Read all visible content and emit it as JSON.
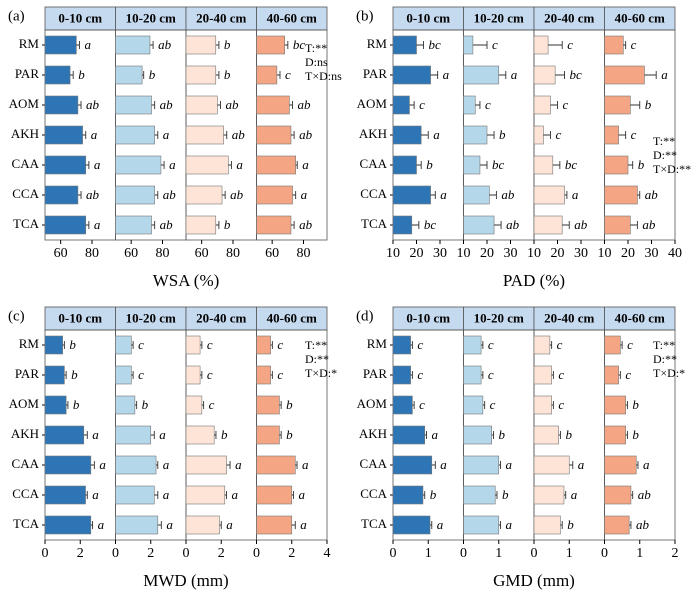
{
  "chart_data": [
    {
      "type": "bar",
      "orientation": "horizontal",
      "panel": "(a)",
      "xlabel": "WSA (%)",
      "categories": [
        "RM",
        "PAR",
        "AOM",
        "AKH",
        "CAA",
        "CCA",
        "TCA"
      ],
      "xlim": [
        50,
        95
      ],
      "xticks": [
        60,
        80
      ],
      "annotation": [
        "T:**",
        "D:ns",
        "T×D:ns"
      ],
      "series": [
        {
          "name": "0-10 cm",
          "color": "#2e75b6",
          "values": [
            70,
            66,
            71,
            74,
            76,
            71,
            76
          ],
          "errors": [
            2,
            2,
            2,
            2,
            2,
            2,
            2
          ],
          "letters": [
            "a",
            "b",
            "ab",
            "a",
            "a",
            "ab",
            "a"
          ]
        },
        {
          "name": "10-20 cm",
          "color": "#b4d7ea",
          "values": [
            72,
            67,
            73,
            75,
            79,
            75,
            73
          ],
          "errors": [
            2,
            1,
            2,
            2,
            2,
            2,
            2
          ],
          "letters": [
            "ab",
            "b",
            "ab",
            "a",
            "a",
            "ab",
            "ab"
          ]
        },
        {
          "name": "20-40 cm",
          "color": "#fde4d6",
          "values": [
            69,
            69,
            70,
            74,
            77,
            73,
            69
          ],
          "errors": [
            2,
            2,
            2,
            2,
            2,
            2,
            2
          ],
          "letters": [
            "b",
            "b",
            "ab",
            "ab",
            "a",
            "ab",
            "b"
          ]
        },
        {
          "name": "40-60 cm",
          "color": "#f4a583",
          "values": [
            68,
            63,
            71,
            72,
            75,
            73,
            72
          ],
          "errors": [
            2,
            2,
            2,
            2,
            1,
            2,
            2
          ],
          "letters": [
            "bc",
            "c",
            "ab",
            "ab",
            "a",
            "a",
            "ab"
          ]
        }
      ]
    },
    {
      "type": "bar",
      "orientation": "horizontal",
      "panel": "(b)",
      "xlabel": "PAD (%)",
      "categories": [
        "RM",
        "PAR",
        "AOM",
        "AKH",
        "CAA",
        "CCA",
        "TCA"
      ],
      "xlim": [
        10,
        40
      ],
      "xticks": [
        10,
        20,
        30,
        40
      ],
      "annotation": [
        "T:**",
        "D:**",
        "T×D:**"
      ],
      "series": [
        {
          "name": "0-10 cm",
          "color": "#2e75b6",
          "values": [
            20,
            26,
            17,
            22,
            20,
            26,
            18
          ],
          "errors": [
            3,
            3,
            2,
            3,
            2,
            2,
            3
          ],
          "letters": [
            "bc",
            "a",
            "c",
            "a",
            "b",
            "a",
            "bc"
          ]
        },
        {
          "name": "10-20 cm",
          "color": "#b4d7ea",
          "values": [
            14,
            25,
            15,
            20,
            17,
            21,
            23
          ],
          "errors": [
            6,
            3,
            2,
            3,
            3,
            3,
            3
          ],
          "letters": [
            "c",
            "a",
            "c",
            "b",
            "bc",
            "ab",
            "ab"
          ]
        },
        {
          "name": "20-40 cm",
          "color": "#fde4d6",
          "values": [
            16,
            19,
            17,
            14,
            18,
            23,
            22
          ],
          "errors": [
            6,
            4,
            3,
            3,
            3,
            1,
            3
          ],
          "letters": [
            "c",
            "bc",
            "c",
            "c",
            "bc",
            "a",
            "ab"
          ]
        },
        {
          "name": "40-60 cm",
          "color": "#f4a583",
          "values": [
            18,
            27,
            21,
            16,
            20,
            24,
            21
          ],
          "errors": [
            1,
            5,
            4,
            3,
            2,
            1,
            3
          ],
          "letters": [
            "c",
            "a",
            "b",
            "c",
            "b",
            "ab",
            "ab"
          ]
        }
      ]
    },
    {
      "type": "bar",
      "orientation": "horizontal",
      "panel": "(c)",
      "xlabel": "MWD (mm)",
      "categories": [
        "RM",
        "PAR",
        "AOM",
        "AKH",
        "CAA",
        "CCA",
        "TCA"
      ],
      "xlim": [
        0,
        4
      ],
      "xticks": [
        0,
        2,
        4
      ],
      "annotation": [
        "T:**",
        "D:**",
        "T×D:*"
      ],
      "series": [
        {
          "name": "0-10 cm",
          "color": "#2e75b6",
          "values": [
            1.0,
            1.1,
            1.2,
            2.2,
            2.6,
            2.3,
            2.6
          ],
          "errors": [
            0.1,
            0.1,
            0.1,
            0.2,
            0.2,
            0.1,
            0.1
          ],
          "letters": [
            "b",
            "b",
            "b",
            "a",
            "a",
            "a",
            "a"
          ]
        },
        {
          "name": "10-20 cm",
          "color": "#b4d7ea",
          "values": [
            0.9,
            0.9,
            1.1,
            2.0,
            2.3,
            2.2,
            2.4
          ],
          "errors": [
            0.1,
            0.1,
            0.1,
            0.2,
            0.1,
            0.2,
            0.2
          ],
          "letters": [
            "c",
            "c",
            "b",
            "a",
            "a",
            "a",
            "a"
          ]
        },
        {
          "name": "20-40 cm",
          "color": "#fde4d6",
          "values": [
            0.8,
            0.8,
            0.9,
            1.6,
            2.3,
            2.2,
            1.9
          ],
          "errors": [
            0.1,
            0.1,
            0.1,
            0.1,
            0.2,
            0.1,
            0.1
          ],
          "letters": [
            "c",
            "c",
            "c",
            "b",
            "a",
            "a",
            "a"
          ]
        },
        {
          "name": "40-60 cm",
          "color": "#f4a583",
          "values": [
            0.8,
            0.8,
            1.3,
            1.3,
            2.2,
            2.0,
            2.0
          ],
          "errors": [
            0.1,
            0.1,
            0.1,
            0.1,
            0.1,
            0.1,
            0.2
          ],
          "letters": [
            "c",
            "c",
            "b",
            "b",
            "a",
            "a",
            "a"
          ]
        }
      ]
    },
    {
      "type": "bar",
      "orientation": "horizontal",
      "panel": "(d)",
      "xlabel": "GMD (mm)",
      "categories": [
        "RM",
        "PAR",
        "AOM",
        "AKH",
        "CAA",
        "CCA",
        "TCA"
      ],
      "xlim": [
        0,
        2
      ],
      "xticks": [
        0,
        1,
        2
      ],
      "annotation": [
        "T:**",
        "D:**",
        "T×D:*"
      ],
      "series": [
        {
          "name": "0-10 cm",
          "color": "#2e75b6",
          "values": [
            0.5,
            0.5,
            0.55,
            0.9,
            1.1,
            0.85,
            1.05
          ],
          "errors": [
            0.05,
            0.05,
            0.05,
            0.05,
            0.1,
            0.05,
            0.05
          ],
          "letters": [
            "c",
            "c",
            "c",
            "a",
            "a",
            "b",
            "a"
          ]
        },
        {
          "name": "10-20 cm",
          "color": "#b4d7ea",
          "values": [
            0.5,
            0.5,
            0.55,
            0.8,
            1.0,
            0.9,
            1.0
          ],
          "errors": [
            0.05,
            0.05,
            0.05,
            0.05,
            0.05,
            0.05,
            0.05
          ],
          "letters": [
            "c",
            "c",
            "c",
            "b",
            "a",
            "b",
            "a"
          ]
        },
        {
          "name": "20-40 cm",
          "color": "#fde4d6",
          "values": [
            0.45,
            0.5,
            0.5,
            0.7,
            1.0,
            0.85,
            0.75
          ],
          "errors": [
            0.05,
            0.05,
            0.05,
            0.05,
            0.1,
            0.05,
            0.05
          ],
          "letters": [
            "c",
            "c",
            "c",
            "b",
            "a",
            "a",
            "b"
          ]
        },
        {
          "name": "40-60 cm",
          "color": "#f4a583",
          "values": [
            0.45,
            0.4,
            0.6,
            0.6,
            0.9,
            0.75,
            0.7
          ],
          "errors": [
            0.05,
            0.05,
            0.05,
            0.05,
            0.05,
            0.05,
            0.05
          ],
          "letters": [
            "c",
            "c",
            "b",
            "b",
            "a",
            "ab",
            "ab"
          ]
        }
      ]
    }
  ]
}
